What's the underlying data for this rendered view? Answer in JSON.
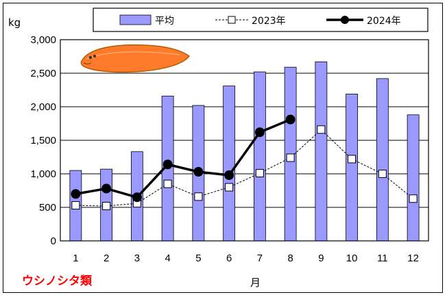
{
  "chart_data": {
    "type": "bar",
    "title": "",
    "species_label": "ウシノシタ類",
    "ylabel": "kg",
    "xlabel": "月",
    "ylim": [
      0,
      3000
    ],
    "yticks": [
      0,
      500,
      1000,
      1500,
      2000,
      2500,
      3000
    ],
    "ytick_labels": [
      "0",
      "500",
      "1,000",
      "1,500",
      "2,000",
      "2,500",
      "3,000"
    ],
    "categories": [
      "1",
      "2",
      "3",
      "4",
      "5",
      "6",
      "7",
      "8",
      "9",
      "10",
      "11",
      "12"
    ],
    "grid": true,
    "legend_position": "top",
    "series": [
      {
        "name": "平均",
        "kind": "bar",
        "color": "#9999ff",
        "values": [
          1050,
          1070,
          1330,
          2160,
          2020,
          2310,
          2520,
          2590,
          2670,
          2190,
          2420,
          1880
        ]
      },
      {
        "name": "2023年",
        "kind": "line-dashed",
        "color": "#000000",
        "values": [
          530,
          520,
          560,
          850,
          660,
          800,
          1010,
          1240,
          1660,
          1220,
          1000,
          630
        ]
      },
      {
        "name": "2024年",
        "kind": "line-bold",
        "color": "#000000",
        "values": [
          700,
          780,
          650,
          1140,
          1030,
          980,
          1620,
          1810,
          null,
          null,
          null,
          null
        ]
      }
    ],
    "colors": {
      "species_label": "#ff0000",
      "fish_body": "#ff7a2a",
      "fish_outline": "#b35a00"
    }
  }
}
